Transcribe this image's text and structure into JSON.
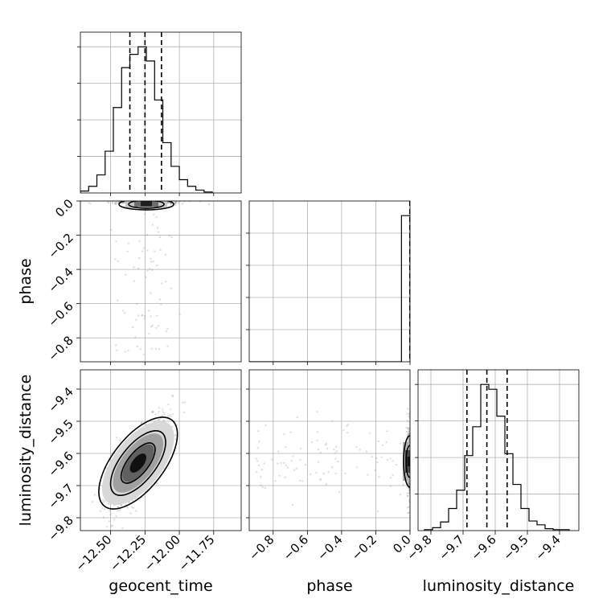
{
  "figure": {
    "background": "#ffffff"
  },
  "chart_data": {
    "type": "corner",
    "parameters": [
      "geocent_time",
      "phase",
      "luminosity_distance"
    ],
    "axis_labels": {
      "x": [
        "geocent_time",
        "phase",
        "luminosity_distance"
      ],
      "y": [
        "phase",
        "luminosity_distance"
      ]
    },
    "ranges": {
      "geocent_time": [
        -12.72,
        -11.55
      ],
      "phase": [
        -0.94,
        0.0
      ],
      "luminosity_distance": [
        -9.84,
        -9.34
      ]
    },
    "ticks": {
      "geocent_time": {
        "values": [
          -12.5,
          -12.25,
          -12.0,
          -11.75
        ],
        "labels": [
          "−12.50",
          "−12.25",
          "−12.00",
          "−11.75"
        ]
      },
      "phase": {
        "values": [
          -0.8,
          -0.6,
          -0.4,
          -0.2,
          0.0
        ],
        "labels": [
          "−0.8",
          "−0.6",
          "−0.4",
          "−0.2",
          "0.0"
        ]
      },
      "luminosity_distance": {
        "values": [
          -9.8,
          -9.7,
          -9.6,
          -9.5,
          -9.4
        ],
        "labels": [
          "−9.8",
          "−9.7",
          "−9.6",
          "−9.5",
          "−9.4"
        ]
      }
    },
    "grid": true,
    "histograms": [
      {
        "name": "geocent_time",
        "edges": [
          -12.72,
          -12.66,
          -12.6,
          -12.54,
          -12.48,
          -12.42,
          -12.36,
          -12.3,
          -12.24,
          -12.18,
          -12.12,
          -12.06,
          -12.0,
          -11.94,
          -11.88,
          -11.82,
          -11.76
        ],
        "counts": [
          2,
          7,
          19,
          44,
          90,
          132,
          146,
          154,
          139,
          98,
          53,
          28,
          14,
          7,
          3,
          1
        ],
        "quantiles": [
          -12.36,
          -12.25,
          -12.13
        ]
      },
      {
        "name": "phase",
        "edges": [
          -0.94,
          -0.05,
          0.0
        ],
        "counts": [
          0,
          153
        ],
        "quantiles": [
          -0.001,
          0.0
        ]
      },
      {
        "name": "luminosity_distance",
        "edges": [
          -9.82,
          -9.795,
          -9.77,
          -9.745,
          -9.72,
          -9.695,
          -9.67,
          -9.645,
          -9.62,
          -9.595,
          -9.57,
          -9.545,
          -9.52,
          -9.495,
          -9.47,
          -9.445,
          -9.42,
          -9.395,
          -9.37
        ],
        "counts": [
          1,
          3,
          9,
          23,
          42,
          78,
          108,
          152,
          147,
          119,
          80,
          48,
          23,
          10,
          6,
          2,
          1,
          1
        ],
        "quantiles": [
          -9.688,
          -9.626,
          -9.563
        ]
      }
    ],
    "pairs": [
      {
        "x": "geocent_time",
        "y": "phase",
        "center": [
          -12.24,
          -0.005
        ]
      },
      {
        "x": "geocent_time",
        "y": "luminosity_distance",
        "center": [
          -12.3,
          -9.63
        ],
        "correlation": 0.74
      },
      {
        "x": "phase",
        "y": "luminosity_distance",
        "center": [
          -0.005,
          -9.625
        ]
      }
    ]
  }
}
